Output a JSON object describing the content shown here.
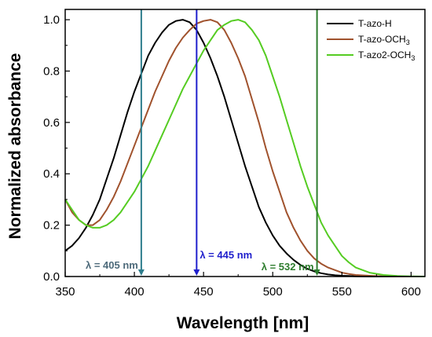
{
  "chart_data": {
    "type": "line",
    "xlabel": "Wavelength [nm]",
    "ylabel": "Normalized absorbance",
    "xlim": [
      350,
      610
    ],
    "ylim": [
      0,
      1.04
    ],
    "xticks": [
      350,
      400,
      450,
      500,
      550,
      600
    ],
    "xtick_labels": [
      "350",
      "400",
      "450",
      "500",
      "550",
      "600"
    ],
    "yticks": [
      0.0,
      0.2,
      0.4,
      0.6,
      0.8,
      1.0
    ],
    "ytick_labels": [
      "0.0",
      "0.2",
      "0.4",
      "0.6",
      "0.8",
      "1.0"
    ],
    "grid": false,
    "legend_position": "top-right",
    "series": [
      {
        "name": "T-azo-H",
        "name_main": "T-azo-H",
        "name_sub": "",
        "color": "#000000",
        "x": [
          350,
          355,
          360,
          365,
          370,
          375,
          380,
          385,
          390,
          395,
          400,
          405,
          410,
          415,
          420,
          425,
          430,
          435,
          440,
          445,
          450,
          455,
          460,
          465,
          470,
          475,
          480,
          485,
          490,
          495,
          500,
          505,
          510,
          515,
          520,
          525,
          530,
          535,
          540,
          545,
          550,
          555,
          560,
          570,
          580,
          590,
          600,
          610
        ],
        "y": [
          0.1,
          0.12,
          0.15,
          0.19,
          0.24,
          0.3,
          0.38,
          0.46,
          0.55,
          0.64,
          0.72,
          0.79,
          0.86,
          0.91,
          0.95,
          0.98,
          0.995,
          1.0,
          0.99,
          0.96,
          0.91,
          0.85,
          0.78,
          0.7,
          0.61,
          0.52,
          0.43,
          0.35,
          0.27,
          0.21,
          0.16,
          0.12,
          0.09,
          0.065,
          0.045,
          0.03,
          0.02,
          0.013,
          0.008,
          0.005,
          0.003,
          0.002,
          0.001,
          0,
          0,
          0,
          0,
          0
        ]
      },
      {
        "name": "T-azo-OCH3",
        "name_main": "T-azo-OCH",
        "name_sub": "3",
        "color": "#a0522d",
        "x": [
          350,
          355,
          360,
          365,
          370,
          375,
          380,
          385,
          390,
          395,
          400,
          405,
          410,
          415,
          420,
          425,
          430,
          435,
          440,
          445,
          450,
          455,
          460,
          465,
          470,
          475,
          480,
          485,
          490,
          495,
          500,
          505,
          510,
          515,
          520,
          525,
          530,
          535,
          540,
          545,
          550,
          555,
          560,
          570,
          580,
          590,
          600,
          610
        ],
        "y": [
          0.3,
          0.25,
          0.22,
          0.2,
          0.2,
          0.22,
          0.26,
          0.31,
          0.37,
          0.44,
          0.51,
          0.58,
          0.65,
          0.72,
          0.78,
          0.84,
          0.89,
          0.93,
          0.96,
          0.985,
          0.995,
          1.0,
          0.99,
          0.96,
          0.91,
          0.85,
          0.78,
          0.69,
          0.6,
          0.5,
          0.41,
          0.33,
          0.25,
          0.19,
          0.14,
          0.1,
          0.07,
          0.05,
          0.035,
          0.025,
          0.015,
          0.01,
          0.006,
          0.003,
          0.001,
          0,
          0,
          0
        ]
      },
      {
        "name": "T-azo2-OCH3",
        "name_main": "T-azo2-OCH",
        "name_sub": "3",
        "color": "#55cc22",
        "x": [
          350,
          355,
          360,
          365,
          370,
          375,
          380,
          385,
          390,
          395,
          400,
          405,
          410,
          415,
          420,
          425,
          430,
          435,
          440,
          445,
          450,
          455,
          460,
          465,
          470,
          475,
          480,
          485,
          490,
          495,
          500,
          505,
          510,
          515,
          520,
          525,
          530,
          535,
          540,
          545,
          550,
          555,
          560,
          570,
          580,
          590,
          600,
          610
        ],
        "y": [
          0.3,
          0.26,
          0.22,
          0.2,
          0.19,
          0.19,
          0.2,
          0.22,
          0.25,
          0.29,
          0.33,
          0.38,
          0.43,
          0.49,
          0.55,
          0.61,
          0.67,
          0.73,
          0.78,
          0.83,
          0.88,
          0.92,
          0.96,
          0.98,
          0.995,
          1.0,
          0.99,
          0.96,
          0.92,
          0.86,
          0.78,
          0.7,
          0.61,
          0.52,
          0.43,
          0.35,
          0.28,
          0.21,
          0.16,
          0.12,
          0.08,
          0.055,
          0.035,
          0.015,
          0.006,
          0.002,
          0.001,
          0
        ]
      }
    ],
    "markers": [
      {
        "label": "λ = 405 nm",
        "x": 405,
        "color": "#2e7d8c",
        "label_color": "#4d6a7a",
        "label_y": 0.03,
        "label_side": "left"
      },
      {
        "label": "λ = 445 nm",
        "x": 445,
        "color": "#1f1fcc",
        "label_color": "#1f1fcc",
        "label_y": 0.07,
        "label_side": "right"
      },
      {
        "label": "λ = 532 nm",
        "x": 532,
        "color": "#2e7d2e",
        "label_color": "#2e7d2e",
        "label_y": 0.025,
        "label_side": "left"
      }
    ]
  }
}
